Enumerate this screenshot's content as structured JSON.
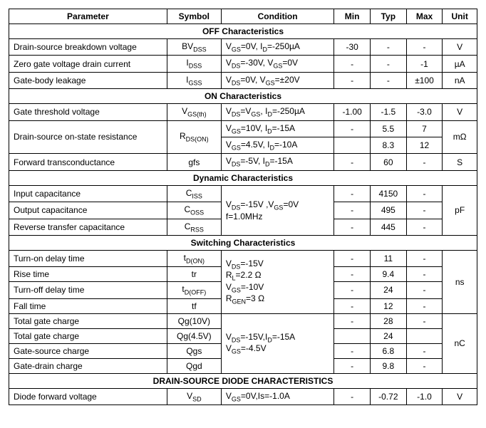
{
  "columns": {
    "parameter": "Parameter",
    "symbol": "Symbol",
    "condition": "Condition",
    "min": "Min",
    "typ": "Typ",
    "max": "Max",
    "unit": "Unit"
  },
  "sections": {
    "off": "OFF Characteristics",
    "on": "ON Characteristics",
    "dyn": "Dynamic Characteristics",
    "sw": "Switching Characteristics",
    "diode": "DRAIN-SOURCE DIODE CHARACTERISTICS"
  },
  "off": {
    "bvdss": {
      "param": "Drain-source breakdown voltage",
      "min": "-30",
      "typ": "-",
      "max": "-",
      "unit": "V"
    },
    "idss": {
      "param": "Zero gate voltage drain current",
      "min": "-",
      "typ": "-",
      "max": "-1",
      "unit": "µA"
    },
    "igss": {
      "param": "Gate-body leakage",
      "min": "-",
      "typ": "-",
      "max": "±100",
      "unit": "nA"
    }
  },
  "on": {
    "vgsth": {
      "param": "Gate threshold voltage",
      "min": "-1.00",
      "typ": "-1.5",
      "max": "-3.0",
      "unit": "V"
    },
    "rdson": {
      "param": "Drain-source on-state resistance",
      "c1": {
        "min": "-",
        "typ": "5.5",
        "max": "7"
      },
      "c2": {
        "min": "",
        "typ": "8.3",
        "max": "12"
      },
      "unit": "mΩ"
    },
    "gfs": {
      "param": "Forward transconductance",
      "min": "-",
      "typ": "60",
      "max": "-",
      "unit": "S"
    }
  },
  "dyn": {
    "ciss": {
      "param": "Input capacitance",
      "min": "-",
      "typ": "4150",
      "max": "-"
    },
    "coss": {
      "param": "Output capacitance",
      "min": "-",
      "typ": "495",
      "max": "-"
    },
    "crss": {
      "param": "Reverse transfer capacitance",
      "min": "-",
      "typ": "445",
      "max": "-"
    },
    "unit": "pF"
  },
  "sw": {
    "tdon": {
      "param": "Turn-on delay time",
      "min": "-",
      "typ": "11",
      "max": "-"
    },
    "tr": {
      "param": "Rise time",
      "min": "-",
      "typ": "9.4",
      "max": "-"
    },
    "tdoff": {
      "param": "Turn-off delay time",
      "min": "-",
      "typ": "24",
      "max": "-"
    },
    "tf": {
      "param": "Fall time",
      "min": "-",
      "typ": "12",
      "max": "-"
    },
    "time_unit": "ns",
    "qg10": {
      "param": "Total gate charge",
      "min": "-",
      "typ": "28",
      "max": "-"
    },
    "qg45": {
      "param": "Total gate charge",
      "min": "",
      "typ": "24",
      "max": ""
    },
    "qgs": {
      "param": "Gate-source charge",
      "min": "-",
      "typ": "6.8",
      "max": "-"
    },
    "qgd": {
      "param": "Gate-drain charge",
      "min": "-",
      "typ": "9.8",
      "max": "-"
    },
    "charge_unit": "nC"
  },
  "diode": {
    "vsd": {
      "param": "Diode forward voltage",
      "min": "-",
      "typ": "-0.72",
      "max": "-1.0",
      "unit": "V"
    }
  }
}
